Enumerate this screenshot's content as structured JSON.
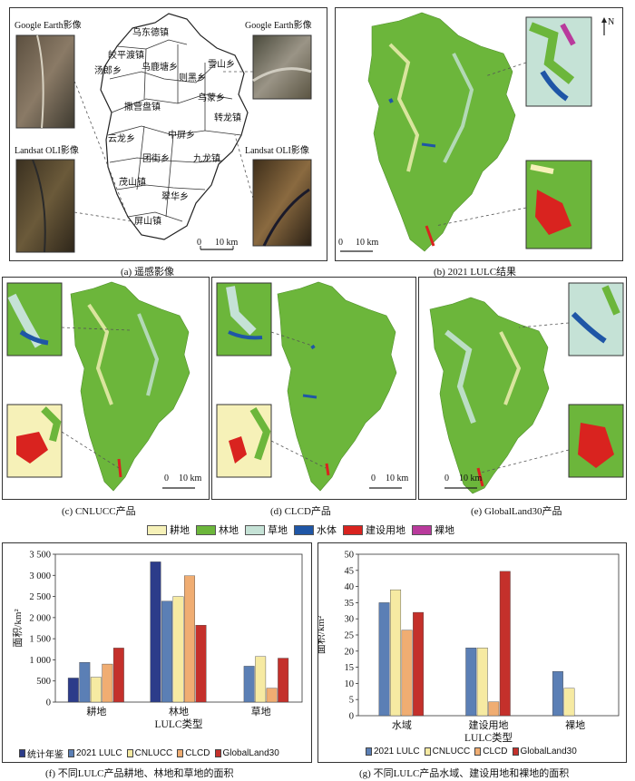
{
  "panel_a": {
    "label_ge_left": "Google Earth影像",
    "label_ge_right": "Google Earth影像",
    "label_ls_left": "Landsat OLI影像",
    "label_ls_right": "Landsat OLI影像",
    "towns": [
      "乌东德镇",
      "皎平渡镇",
      "汤郎乡",
      "乌鹿塘乡",
      "则黑乡",
      "雪山乡",
      "撒营盘镇",
      "乌蒙乡",
      "转龙镇",
      "云龙乡",
      "中屏乡",
      "团街乡",
      "九龙镇",
      "茂山镇",
      "翠华乡",
      "屏山镇"
    ],
    "scale": "10 km",
    "scale_zero": "0",
    "caption": "(a)  遥感影像"
  },
  "panel_b": {
    "north": "N",
    "scale": "10 km",
    "scale_zero": "0",
    "caption": "(b)  2021 LULC结果"
  },
  "panel_c": {
    "scale": "10 km",
    "scale_zero": "0",
    "caption": "(c)  CNLUCC产品"
  },
  "panel_d": {
    "scale": "10 km",
    "scale_zero": "0",
    "caption": "(d)  CLCD产品"
  },
  "panel_e": {
    "scale": "10 km",
    "scale_zero": "0",
    "caption": "(e)  GlobalLand30产品"
  },
  "lulc_legend": [
    {
      "name": "耕地",
      "color": "#f6f1b8"
    },
    {
      "name": "林地",
      "color": "#6cb63b"
    },
    {
      "name": "草地",
      "color": "#c5e2d6"
    },
    {
      "name": "水体",
      "color": "#1f56a6"
    },
    {
      "name": "建设用地",
      "color": "#d9231f"
    },
    {
      "name": "裸地",
      "color": "#b93a9c"
    }
  ],
  "colors": {
    "stat": "#2c3c8a",
    "lulc2021": "#5b7fb5",
    "cnlucc": "#f6eaa2",
    "clcd": "#f0ad72",
    "gl30": "#c4302b"
  },
  "chart_data": [
    {
      "type": "bar",
      "ylabel": "面积/km²",
      "xlabel": "LULC类型",
      "categories": [
        "耕地",
        "林地",
        "草地"
      ],
      "ylim": [
        0,
        3500
      ],
      "yticks": [
        "0",
        "500",
        "1 000",
        "1 500",
        "2 000",
        "2 500",
        "3 000",
        "3 500"
      ],
      "series": [
        {
          "name": "统计年鉴",
          "values": [
            570,
            3320,
            null
          ]
        },
        {
          "name": "2021 LULC",
          "values": [
            940,
            2390,
            850
          ]
        },
        {
          "name": "CNLUCC",
          "values": [
            590,
            2500,
            1080
          ]
        },
        {
          "name": "CLCD",
          "values": [
            900,
            2990,
            330
          ]
        },
        {
          "name": "GlobalLand30",
          "values": [
            1280,
            1820,
            1040
          ]
        }
      ],
      "caption": "(f)  不同LULC产品耕地、林地和草地的面积"
    },
    {
      "type": "bar",
      "ylabel": "面积/km²",
      "xlabel": "LULC类型",
      "categories": [
        "水域",
        "建设用地",
        "裸地"
      ],
      "ylim": [
        0,
        50
      ],
      "yticks": [
        "0",
        "5",
        "10",
        "15",
        "20",
        "25",
        "30",
        "35",
        "40",
        "45",
        "50"
      ],
      "series": [
        {
          "name": "2021 LULC",
          "values": [
            35,
            21,
            13.7
          ]
        },
        {
          "name": "CNLUCC",
          "values": [
            39,
            21,
            8.5
          ]
        },
        {
          "name": "CLCD",
          "values": [
            26.5,
            4.3,
            0
          ]
        },
        {
          "name": "GlobalLand30",
          "values": [
            32,
            44.7,
            0
          ]
        }
      ],
      "caption": "(g)  不同LULC产品水域、建设用地和裸地的面积"
    }
  ]
}
